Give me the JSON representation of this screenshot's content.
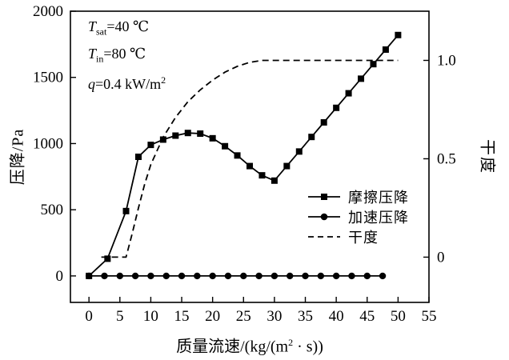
{
  "chart_data": {
    "type": "line",
    "title": "",
    "xlabel": "质量流速/(kg/(m²·s))",
    "xlabel_parts": {
      "pre": "质量流速/(kg/(m",
      "sup": "2",
      "post": " · s))"
    },
    "x_axis": {
      "min": -3,
      "max": 55,
      "ticks": [
        0,
        5,
        10,
        15,
        20,
        25,
        30,
        35,
        40,
        45,
        50,
        55
      ]
    },
    "y_left": {
      "label": "压降/Pa",
      "min": -200,
      "max": 2000,
      "ticks": [
        0,
        500,
        1000,
        1500,
        2000
      ]
    },
    "y_right": {
      "label": "干度",
      "min": -0.23,
      "max": 1.25,
      "ticks": [
        0,
        0.5,
        1.0
      ],
      "tick_labels": [
        "0",
        "0.5",
        "1.0"
      ]
    },
    "grid": false,
    "legend_position": "inside-right-middle",
    "annotations": [
      {
        "sym": "T",
        "sub": "sat",
        "rest": "=40 ℃"
      },
      {
        "sym": "T",
        "sub": "in",
        "rest": "=80 ℃"
      },
      {
        "sym": "q",
        "sub": "",
        "rest": "=0.4 kW/m",
        "sup": "2"
      }
    ],
    "legend": {
      "items": [
        {
          "label": "摩擦压降",
          "marker": "square-line"
        },
        {
          "label": "加速压降",
          "marker": "circle-line"
        },
        {
          "label": "干度",
          "marker": "dashed-line"
        }
      ]
    },
    "series": [
      {
        "name": "摩擦压降",
        "axis": "left",
        "marker": "square",
        "line": "solid",
        "points": [
          [
            0,
            0
          ],
          [
            3,
            130
          ],
          [
            6,
            490
          ],
          [
            8,
            900
          ],
          [
            10,
            990
          ],
          [
            12,
            1030
          ],
          [
            14,
            1060
          ],
          [
            16,
            1080
          ],
          [
            18,
            1075
          ],
          [
            20,
            1040
          ],
          [
            22,
            980
          ],
          [
            24,
            910
          ],
          [
            26,
            830
          ],
          [
            28,
            760
          ],
          [
            30,
            720
          ],
          [
            32,
            830
          ],
          [
            34,
            940
          ],
          [
            36,
            1050
          ],
          [
            38,
            1160
          ],
          [
            40,
            1270
          ],
          [
            42,
            1380
          ],
          [
            44,
            1490
          ],
          [
            46,
            1600
          ],
          [
            48,
            1710
          ],
          [
            50,
            1820
          ]
        ]
      },
      {
        "name": "加速压降",
        "axis": "left",
        "marker": "circle",
        "line": "solid",
        "points": [
          [
            0,
            0
          ],
          [
            2.5,
            0
          ],
          [
            5,
            0
          ],
          [
            7.5,
            0
          ],
          [
            10,
            0
          ],
          [
            12.5,
            0
          ],
          [
            15,
            0
          ],
          [
            17.5,
            0
          ],
          [
            20,
            0
          ],
          [
            22.5,
            0
          ],
          [
            25,
            0
          ],
          [
            27.5,
            0
          ],
          [
            30,
            0
          ],
          [
            32.5,
            0
          ],
          [
            35,
            0
          ],
          [
            37.5,
            0
          ],
          [
            40,
            0
          ],
          [
            42.5,
            0
          ],
          [
            45,
            0
          ],
          [
            47.5,
            0
          ]
        ]
      },
      {
        "name": "干度",
        "axis": "right",
        "marker": "none",
        "line": "dashed",
        "points": [
          [
            2,
            0
          ],
          [
            6,
            0
          ],
          [
            7,
            0.12
          ],
          [
            8,
            0.25
          ],
          [
            9,
            0.37
          ],
          [
            10,
            0.47
          ],
          [
            12,
            0.61
          ],
          [
            14,
            0.71
          ],
          [
            16,
            0.79
          ],
          [
            18,
            0.85
          ],
          [
            20,
            0.9
          ],
          [
            22,
            0.94
          ],
          [
            24,
            0.97
          ],
          [
            26,
            0.99
          ],
          [
            28,
            1.0
          ],
          [
            30,
            1.0
          ],
          [
            50,
            1.0
          ]
        ]
      }
    ]
  }
}
